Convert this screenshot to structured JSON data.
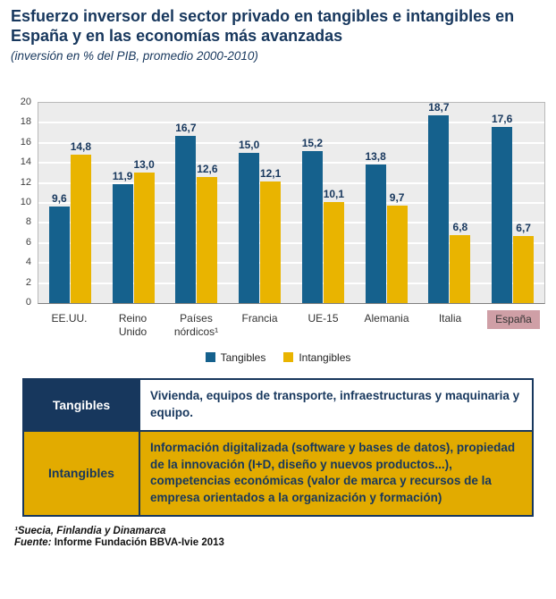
{
  "title": "Esfuerzo inversor del sector privado en tangibles e intangibles en España y en las economías más avanzadas",
  "subtitle": "(inversión en % del PIB, promedio 2000-2010)",
  "chart_data": {
    "type": "bar",
    "categories": [
      "EE.UU.",
      "Reino Unido",
      "Países nórdicos¹",
      "Francia",
      "UE-15",
      "Alemania",
      "Italia",
      "España"
    ],
    "series": [
      {
        "name": "Tangibles",
        "color": "#15618d",
        "values": [
          9.6,
          11.9,
          16.7,
          15.0,
          15.2,
          13.8,
          18.7,
          17.6
        ]
      },
      {
        "name": "Intangibles",
        "color": "#e9b400",
        "values": [
          14.8,
          13.0,
          12.6,
          12.1,
          10.1,
          9.7,
          6.8,
          6.7
        ]
      }
    ],
    "ylim": [
      0,
      20
    ],
    "ytick_step": 2,
    "grid": true,
    "legend_position": "bottom",
    "highlight_category": "España",
    "highlight_color": "#cf9fa6",
    "value_decimal_separator": ","
  },
  "table": {
    "rows": [
      {
        "header": "Tangibles",
        "text": "Vivienda, equipos de transporte, infraestructuras y maquinaria y equipo."
      },
      {
        "header": "Intangibles",
        "text": "Información digitalizada (software y bases de datos), propiedad de la innovación (I+D, diseño y nuevos productos...), competencias económicas (valor de marca y recursos de la empresa orientados a la organización y formación)"
      }
    ]
  },
  "footnotes": {
    "note1": "¹Suecia, Finlandia y Dinamarca",
    "source_label": "Fuente:",
    "source_text": "Informe Fundación BBVA-Ivie 2013"
  },
  "colors": {
    "title_blue": "#17375d",
    "bar_blue": "#15618d",
    "bar_yellow": "#e9b400",
    "table_gold": "#e2ab00",
    "highlight_pink": "#cf9fa6",
    "plot_background": "#ececec"
  }
}
